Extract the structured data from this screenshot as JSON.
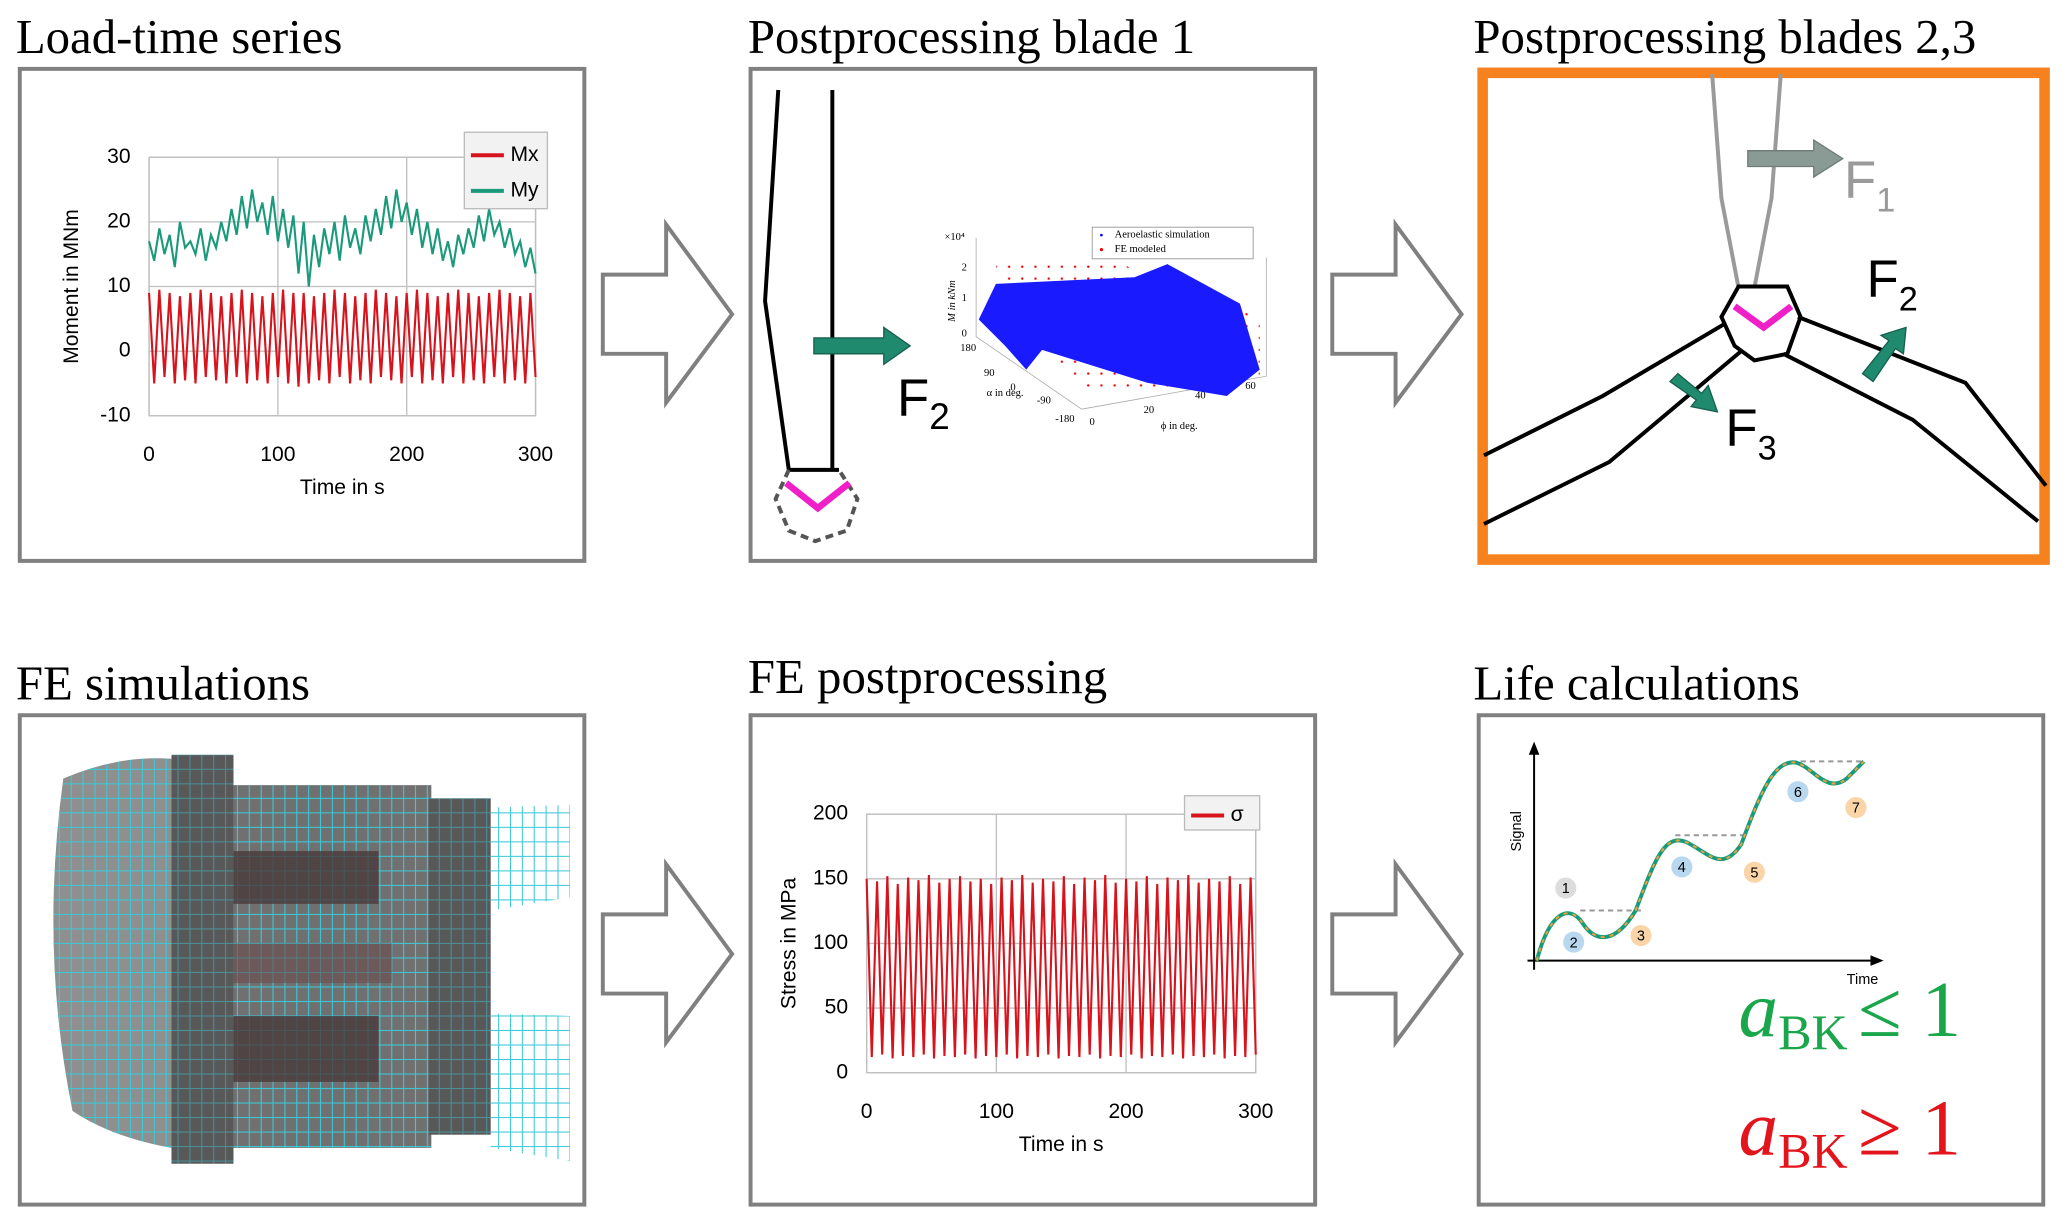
{
  "panels": [
    {
      "title": "Load-time series",
      "chart": {
        "type": "line",
        "x_label": "Time in s",
        "y_label": "Moment in  MNm",
        "x": [
          0,
          4,
          8,
          12,
          16,
          20,
          24,
          28,
          32,
          36,
          40,
          44,
          48,
          52,
          56,
          60,
          64,
          68,
          72,
          76,
          80,
          84,
          88,
          92,
          96,
          100,
          104,
          108,
          112,
          116,
          120,
          124,
          128,
          132,
          136,
          140,
          144,
          148,
          152,
          156,
          160,
          164,
          168,
          172,
          176,
          180,
          184,
          188,
          192,
          196,
          200,
          204,
          208,
          212,
          216,
          220,
          224,
          228,
          232,
          236,
          240,
          244,
          248,
          252,
          256,
          260,
          264,
          268,
          272,
          276,
          280,
          284,
          288,
          292,
          296,
          300
        ],
        "series": [
          {
            "name": "Mx",
            "color": "#d7141e",
            "values": [
              9,
              -5,
              9.5,
              -4,
              9,
              -5,
              8.5,
              -4.5,
              9,
              -5,
              9.5,
              -4,
              9,
              -4.5,
              8.5,
              -5,
              9,
              -4,
              9.5,
              -5,
              9,
              -4.5,
              8.5,
              -5,
              9,
              -4,
              9.5,
              -5,
              9,
              -5.5,
              9,
              -5,
              8.5,
              -4.5,
              9,
              -5,
              9.5,
              -4,
              9,
              -5,
              8.5,
              -4.5,
              9,
              -5,
              9.5,
              -4,
              9,
              -4.5,
              8.5,
              -5,
              9,
              -4,
              9.5,
              -5,
              9,
              -4.5,
              8.5,
              -5,
              9,
              -4,
              9.5,
              -5,
              9,
              -4.5,
              8.5,
              -5,
              9,
              -4,
              9.5,
              -5,
              9,
              -4.5,
              8.5,
              -5,
              9,
              -4
            ]
          },
          {
            "name": "My",
            "color": "#1a9a7a",
            "values": [
              17,
              14,
              19,
              15,
              18,
              13,
              20,
              16,
              17,
              15,
              19,
              14,
              18,
              16,
              20,
              17,
              22,
              18,
              24,
              19,
              25,
              20,
              23,
              18,
              24,
              17,
              22,
              16,
              21,
              12,
              20,
              10,
              18,
              13,
              19,
              15,
              20,
              14,
              21,
              16,
              19,
              15,
              21,
              17,
              22,
              18,
              24,
              19,
              25,
              20,
              23,
              18,
              22,
              16,
              20,
              15,
              19,
              14,
              17,
              13,
              18,
              15,
              19,
              16,
              21,
              17,
              22,
              18,
              20,
              16,
              19,
              15,
              17,
              13,
              16,
              12
            ]
          }
        ],
        "xlim": [
          0,
          300
        ],
        "ylim": [
          -10,
          30
        ],
        "xticks": [
          0,
          100,
          200,
          300
        ],
        "yticks": [
          -10,
          0,
          10,
          20,
          30
        ],
        "grid": true,
        "legend": "upper right"
      }
    },
    {
      "title": "Postprocessing blade 1",
      "force_label": {
        "symbol": "F",
        "subscript": "2"
      },
      "inset": {
        "multiplier": "×10⁴",
        "z_label": "M in kNm",
        "z_ticks": [
          0,
          1,
          2
        ],
        "alpha_label": "α in deg.",
        "alpha_ticks": [
          180,
          90,
          0,
          -90,
          -180
        ],
        "phi_label": "ϕ in deg.",
        "phi_ticks": [
          0,
          20,
          40,
          60
        ],
        "legend": [
          "Aeroelastic simulation",
          "FE modeled"
        ]
      }
    },
    {
      "title": "Postprocessing blades 2,3",
      "force_labels": [
        {
          "symbol": "F",
          "subscript": "1"
        },
        {
          "symbol": "F",
          "subscript": "2"
        },
        {
          "symbol": "F",
          "subscript": "3"
        }
      ]
    },
    {
      "title": "FE simulations"
    },
    {
      "title": "FE postprocessing",
      "chart": {
        "type": "line",
        "x_label": "Time in s",
        "y_label": "Stress in MPa",
        "x": [
          0,
          4,
          8,
          12,
          16,
          20,
          24,
          28,
          32,
          36,
          40,
          44,
          48,
          52,
          56,
          60,
          64,
          68,
          72,
          76,
          80,
          84,
          88,
          92,
          96,
          100,
          104,
          108,
          112,
          116,
          120,
          124,
          128,
          132,
          136,
          140,
          144,
          148,
          152,
          156,
          160,
          164,
          168,
          172,
          176,
          180,
          184,
          188,
          192,
          196,
          200,
          204,
          208,
          212,
          216,
          220,
          224,
          228,
          232,
          236,
          240,
          244,
          248,
          252,
          256,
          260,
          264,
          268,
          272,
          276,
          280,
          284,
          288,
          292,
          296,
          300
        ],
        "series": [
          {
            "name": "σ",
            "color": "#d7141e",
            "values": [
              150,
              12,
              148,
              14,
              152,
              11,
              146,
              13,
              151,
              12,
              149,
              14,
              153,
              11,
              147,
              13,
              150,
              12,
              152,
              14,
              148,
              11,
              150,
              13,
              146,
              12,
              151,
              14,
              149,
              11,
              153,
              13,
              147,
              12,
              150,
              14,
              148,
              11,
              152,
              13,
              146,
              12,
              151,
              14,
              149,
              11,
              153,
              13,
              147,
              12,
              150,
              14,
              148,
              11,
              152,
              13,
              146,
              12,
              151,
              14,
              149,
              11,
              153,
              13,
              147,
              12,
              150,
              14,
              148,
              11,
              152,
              13,
              146,
              12,
              151,
              14
            ]
          }
        ],
        "xlim": [
          0,
          300
        ],
        "ylim": [
          0,
          200
        ],
        "xticks": [
          0,
          100,
          200,
          300
        ],
        "yticks": [
          0,
          50,
          100,
          150,
          200
        ],
        "grid": true,
        "legend": "upper right"
      }
    },
    {
      "title": "Life calculations",
      "x_label": "Time",
      "y_label": "Signal",
      "cycle_labels": [
        1,
        2,
        3,
        4,
        5,
        6,
        7
      ],
      "criteria": [
        {
          "symbol": "a",
          "subscript": "BK",
          "relation": "≤ 1",
          "color": "#1aa64a"
        },
        {
          "symbol": "a",
          "subscript": "BK",
          "relation": "≥ 1",
          "color": "#e3141b"
        }
      ]
    }
  ]
}
